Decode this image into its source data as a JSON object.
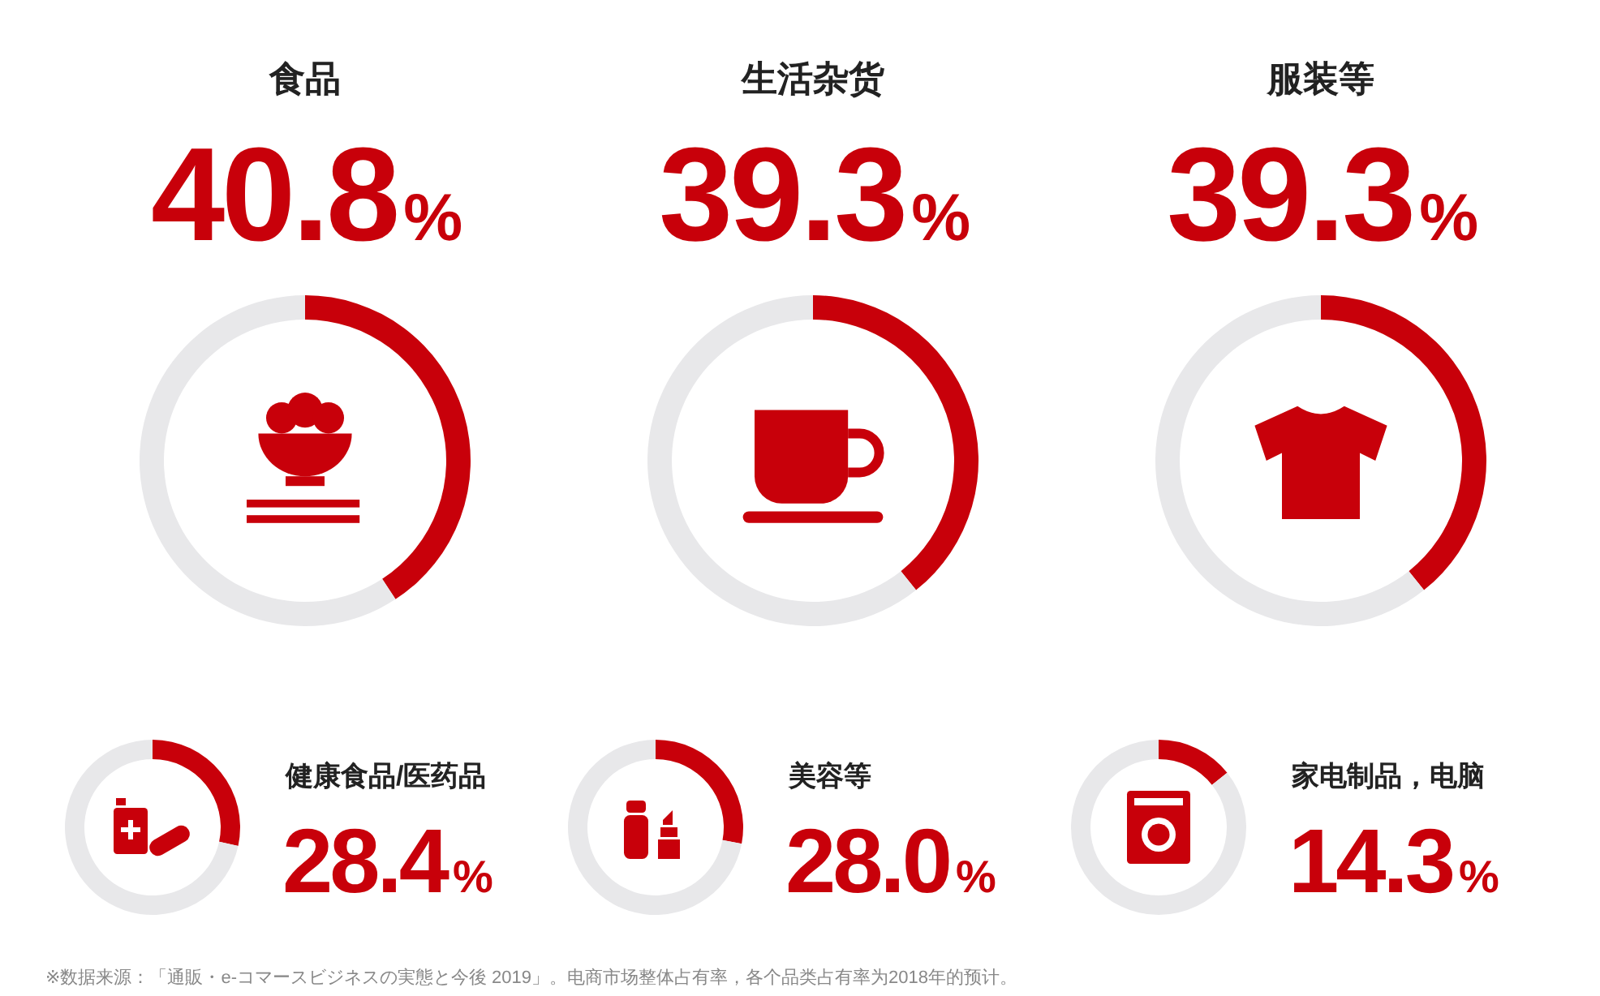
{
  "chart_data": [
    {
      "type": "donut",
      "title": "食品",
      "categories": [
        null,
        null
      ],
      "values": [
        40.8,
        59.2
      ],
      "colors": [
        "#c8000a",
        "#e8e8ea"
      ],
      "value_labels": [
        "40.8%",
        null
      ],
      "annotations": [
        "※数据来源：「通販・e-コマースビジネスの実態と今後 2019」。电商市场整体占有率，各个品类占有率为2018年的预计。"
      ]
    },
    {
      "type": "donut",
      "title": "生活杂货",
      "categories": [
        null,
        null
      ],
      "values": [
        39.3,
        60.7
      ],
      "colors": [
        "#c8000a",
        "#e8e8ea"
      ],
      "value_labels": [
        "39.3%",
        null
      ]
    },
    {
      "type": "donut",
      "title": "服装等",
      "categories": [
        null,
        null
      ],
      "values": [
        39.3,
        60.7
      ],
      "colors": [
        "#c8000a",
        "#e8e8ea"
      ],
      "value_labels": [
        "39.3%",
        null
      ]
    },
    {
      "type": "donut",
      "title": "健康食品/医药品",
      "categories": [
        null,
        null
      ],
      "values": [
        28.4,
        71.6
      ],
      "colors": [
        "#c8000a",
        "#e8e8ea"
      ],
      "value_labels": [
        "28.4%",
        null
      ]
    },
    {
      "type": "donut",
      "title": "美容等",
      "categories": [
        null,
        null
      ],
      "values": [
        28.0,
        72.0
      ],
      "colors": [
        "#c8000a",
        "#e8e8ea"
      ],
      "value_labels": [
        "28.0%",
        null
      ]
    },
    {
      "type": "donut",
      "title": "家电制品，电脑",
      "categories": [
        null,
        null
      ],
      "values": [
        14.3,
        85.7
      ],
      "colors": [
        "#c8000a",
        "#e8e8ea"
      ],
      "value_labels": [
        "14.3%",
        null
      ]
    }
  ]
}
